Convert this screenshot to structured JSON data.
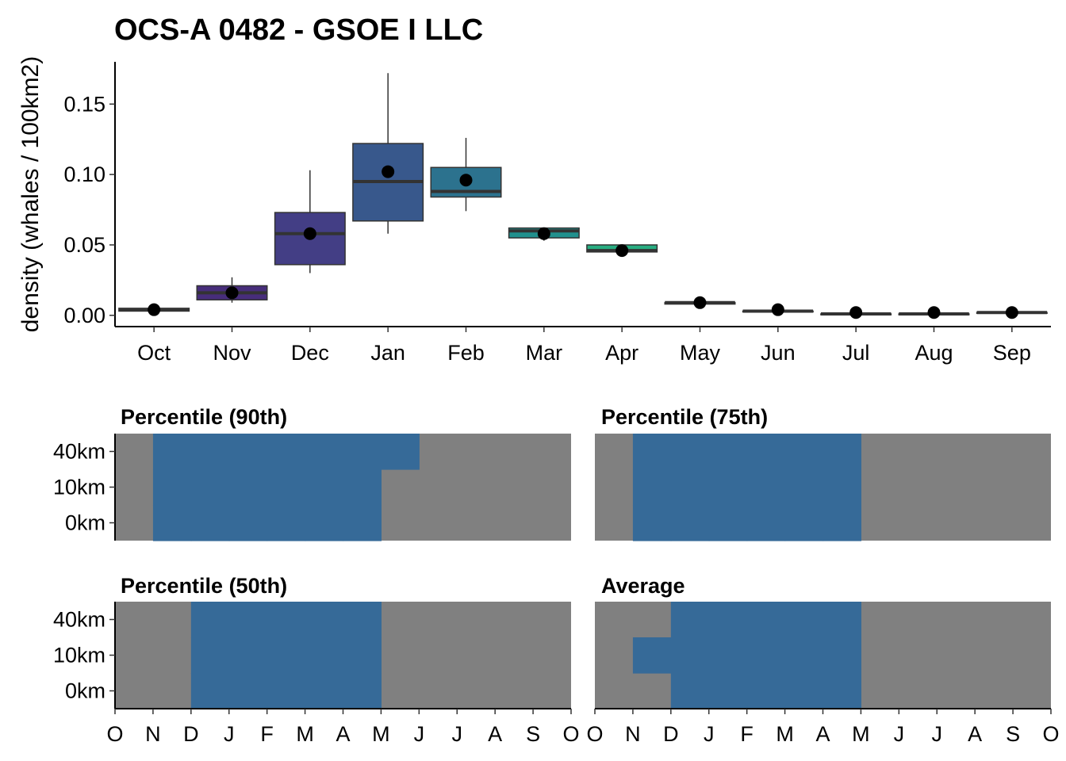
{
  "chart_data": [
    {
      "type": "box",
      "title": "OCS-A 0482 - GSOE I  LLC",
      "ylabel": "density (whales / 100km2)",
      "xlabel": "",
      "categories": [
        "Oct",
        "Nov",
        "Dec",
        "Jan",
        "Feb",
        "Mar",
        "Apr",
        "May",
        "Jun",
        "Jul",
        "Aug",
        "Sep"
      ],
      "ylim": [
        -0.008,
        0.18
      ],
      "yticks": [
        0.0,
        0.05,
        0.1,
        0.15
      ],
      "ytick_labels": [
        "0.00",
        "0.05",
        "0.10",
        "0.15"
      ],
      "boxes": [
        {
          "cat": "Oct",
          "min": 0.003,
          "q1": 0.003,
          "median": 0.004,
          "q3": 0.005,
          "max": 0.005,
          "mean": 0.004,
          "color": "#440154"
        },
        {
          "cat": "Nov",
          "min": 0.009,
          "q1": 0.011,
          "median": 0.016,
          "q3": 0.021,
          "max": 0.027,
          "mean": 0.016,
          "color": "#472d7b"
        },
        {
          "cat": "Dec",
          "min": 0.03,
          "q1": 0.036,
          "median": 0.058,
          "q3": 0.073,
          "max": 0.103,
          "mean": 0.058,
          "color": "#433e85"
        },
        {
          "cat": "Jan",
          "min": 0.058,
          "q1": 0.067,
          "median": 0.095,
          "q3": 0.122,
          "max": 0.172,
          "mean": 0.102,
          "color": "#38588c"
        },
        {
          "cat": "Feb",
          "min": 0.074,
          "q1": 0.084,
          "median": 0.088,
          "q3": 0.105,
          "max": 0.126,
          "mean": 0.096,
          "color": "#2c728e"
        },
        {
          "cat": "Mar",
          "min": 0.053,
          "q1": 0.055,
          "median": 0.06,
          "q3": 0.062,
          "max": 0.062,
          "mean": 0.058,
          "color": "#21908d"
        },
        {
          "cat": "Apr",
          "min": 0.045,
          "q1": 0.045,
          "median": 0.046,
          "q3": 0.05,
          "max": 0.05,
          "mean": 0.046,
          "color": "#27ad81"
        },
        {
          "cat": "May",
          "min": 0.008,
          "q1": 0.008,
          "median": 0.009,
          "q3": 0.009,
          "max": 0.009,
          "mean": 0.009,
          "color": "#5dc863"
        },
        {
          "cat": "Jun",
          "min": 0.003,
          "q1": 0.003,
          "median": 0.003,
          "q3": 0.003,
          "max": 0.003,
          "mean": 0.004,
          "color": "#aadc32"
        },
        {
          "cat": "Jul",
          "min": 0.001,
          "q1": 0.001,
          "median": 0.001,
          "q3": 0.001,
          "max": 0.001,
          "mean": 0.002,
          "color": "#dde318"
        },
        {
          "cat": "Aug",
          "min": 0.001,
          "q1": 0.001,
          "median": 0.001,
          "q3": 0.001,
          "max": 0.001,
          "mean": 0.002,
          "color": "#fde725"
        },
        {
          "cat": "Sep",
          "min": 0.002,
          "q1": 0.002,
          "median": 0.002,
          "q3": 0.002,
          "max": 0.002,
          "mean": 0.002,
          "color": "#fde725"
        }
      ]
    },
    {
      "type": "heatmap",
      "panels": [
        {
          "title": "Percentile (90th)",
          "rows": [
            "40km",
            "10km",
            "0km"
          ],
          "values": [
            [
              0,
              1,
              1,
              1,
              1,
              1,
              1,
              1,
              0,
              0,
              0,
              0
            ],
            [
              0,
              1,
              1,
              1,
              1,
              1,
              1,
              0,
              0,
              0,
              0,
              0
            ],
            [
              0,
              1,
              1,
              1,
              1,
              1,
              1,
              0,
              0,
              0,
              0,
              0
            ]
          ]
        },
        {
          "title": "Percentile (75th)",
          "rows": [
            "40km",
            "10km",
            "0km"
          ],
          "values": [
            [
              0,
              1,
              1,
              1,
              1,
              1,
              1,
              0,
              0,
              0,
              0,
              0
            ],
            [
              0,
              1,
              1,
              1,
              1,
              1,
              1,
              0,
              0,
              0,
              0,
              0
            ],
            [
              0,
              1,
              1,
              1,
              1,
              1,
              1,
              0,
              0,
              0,
              0,
              0
            ]
          ]
        },
        {
          "title": "Percentile (50th)",
          "rows": [
            "40km",
            "10km",
            "0km"
          ],
          "values": [
            [
              0,
              0,
              1,
              1,
              1,
              1,
              1,
              0,
              0,
              0,
              0,
              0
            ],
            [
              0,
              0,
              1,
              1,
              1,
              1,
              1,
              0,
              0,
              0,
              0,
              0
            ],
            [
              0,
              0,
              1,
              1,
              1,
              1,
              1,
              0,
              0,
              0,
              0,
              0
            ]
          ]
        },
        {
          "title": "Average",
          "rows": [
            "40km",
            "10km",
            "0km"
          ],
          "values": [
            [
              0,
              0,
              1,
              1,
              1,
              1,
              1,
              0,
              0,
              0,
              0,
              0
            ],
            [
              0,
              1,
              1,
              1,
              1,
              1,
              1,
              0,
              0,
              0,
              0,
              0
            ],
            [
              0,
              0,
              1,
              1,
              1,
              1,
              1,
              0,
              0,
              0,
              0,
              0
            ]
          ]
        }
      ],
      "xticks": [
        "O",
        "N",
        "D",
        "J",
        "F",
        "M",
        "A",
        "M",
        "J",
        "J",
        "A",
        "S",
        "O"
      ],
      "colors": {
        "on": "#366a98",
        "off": "#808080"
      }
    }
  ]
}
